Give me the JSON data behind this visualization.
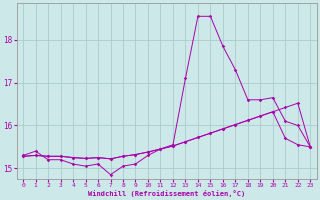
{
  "xlabel": "Windchill (Refroidissement éolien,°C)",
  "background_color": "#cce8e8",
  "grid_color": "#aacccc",
  "line_color": "#aa00aa",
  "hours": [
    0,
    1,
    2,
    3,
    4,
    5,
    6,
    7,
    8,
    9,
    10,
    11,
    12,
    13,
    14,
    15,
    16,
    17,
    18,
    19,
    20,
    21,
    22,
    23
  ],
  "line1": [
    15.3,
    15.4,
    15.2,
    15.2,
    15.1,
    15.05,
    15.1,
    14.85,
    15.05,
    15.1,
    15.3,
    15.45,
    15.55,
    17.1,
    18.55,
    18.55,
    17.85,
    17.3,
    16.6,
    16.6,
    16.65,
    16.1,
    16.0,
    15.5
  ],
  "line2": [
    15.28,
    15.3,
    15.28,
    15.28,
    15.25,
    15.23,
    15.25,
    15.22,
    15.28,
    15.32,
    15.38,
    15.45,
    15.52,
    15.62,
    15.72,
    15.82,
    15.92,
    16.02,
    16.12,
    16.22,
    16.32,
    16.42,
    16.52,
    15.5
  ],
  "line3": [
    15.28,
    15.3,
    15.28,
    15.28,
    15.25,
    15.23,
    15.25,
    15.22,
    15.28,
    15.32,
    15.38,
    15.45,
    15.52,
    15.62,
    15.72,
    15.82,
    15.92,
    16.02,
    16.12,
    16.22,
    16.32,
    15.7,
    15.55,
    15.5
  ],
  "ylim": [
    14.75,
    18.85
  ],
  "yticks": [
    15,
    16,
    17,
    18
  ],
  "xticks": [
    0,
    1,
    2,
    3,
    4,
    5,
    6,
    7,
    8,
    9,
    10,
    11,
    12,
    13,
    14,
    15,
    16,
    17,
    18,
    19,
    20,
    21,
    22,
    23
  ]
}
